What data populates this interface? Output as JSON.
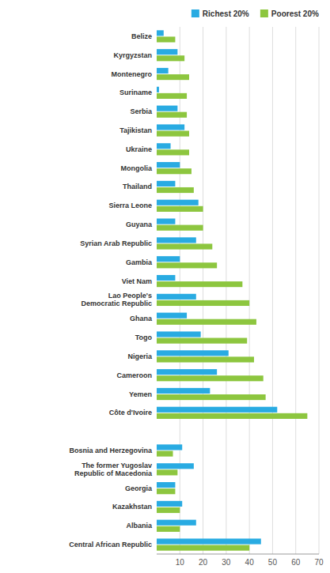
{
  "chart_data": {
    "type": "bar",
    "orientation": "horizontal",
    "categories": [
      "Belize",
      "Kyrgyzstan",
      "Montenegro",
      "Suriname",
      "Serbia",
      "Tajikistan",
      "Ukraine",
      "Mongolia",
      "Thailand",
      "Sierra Leone",
      "Guyana",
      "Syrian Arab Republic",
      "Gambia",
      "Viet Nam",
      "Lao People's\nDemocratic Republic",
      "Ghana",
      "Togo",
      "Nigeria",
      "Cameroon",
      "Yemen",
      "Côte d'Ivoire",
      null,
      "Bosnia and Herzegovina",
      "The former Yugoslav\nRepublic of Macedonia",
      "Georgia",
      "Kazakhstan",
      "Albania",
      "Central African Republic"
    ],
    "series": [
      {
        "name": "Richest 20%",
        "color": "#29ABE2",
        "values": [
          3,
          9,
          5,
          1,
          9,
          12,
          6,
          10,
          8,
          18,
          8,
          17,
          10,
          8,
          17,
          13,
          19,
          31,
          26,
          23,
          52,
          null,
          11,
          16,
          8,
          11,
          17,
          45
        ]
      },
      {
        "name": "Poorest 20%",
        "color": "#8DC63F",
        "values": [
          8,
          12,
          14,
          13,
          13,
          14,
          14,
          15,
          16,
          20,
          20,
          24,
          26,
          37,
          40,
          43,
          39,
          42,
          46,
          47,
          65,
          null,
          7,
          9,
          8,
          10,
          10,
          40
        ]
      }
    ],
    "xlim": [
      0,
      70
    ],
    "xticks": [
      10,
      20,
      30,
      40,
      50,
      60,
      70
    ],
    "grid": true,
    "legend": "top-right"
  }
}
